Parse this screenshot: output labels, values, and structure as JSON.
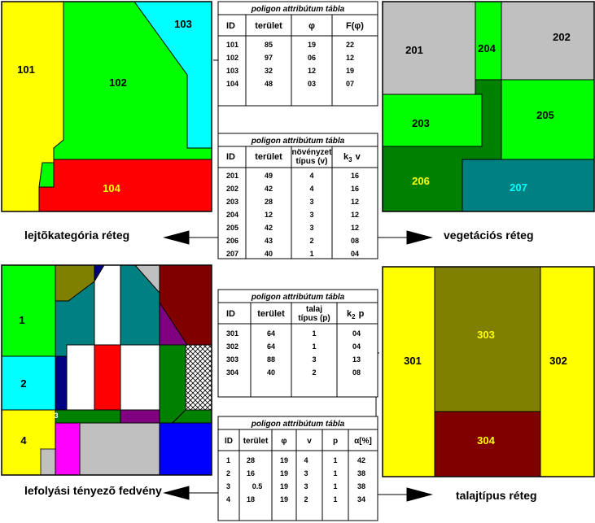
{
  "layers": {
    "slope": {
      "caption": "lejtõkategória réteg",
      "labels": {
        "p101": "101",
        "p102": "102",
        "p103": "103",
        "p104": "104"
      }
    },
    "vegetation": {
      "caption": "vegetációs réteg",
      "labels": {
        "p201": "201",
        "p202": "202",
        "p203": "203",
        "p204": "204",
        "p205": "205",
        "p206": "206",
        "p207": "207"
      }
    },
    "runoff": {
      "caption": "lefolyási tényezõ fedvény",
      "labels": {
        "z1": "1",
        "z2": "2",
        "z3": "3",
        "z4": "4"
      }
    },
    "soil": {
      "caption": "talajtípus réteg",
      "labels": {
        "p301": "301",
        "p302": "302",
        "p303": "303",
        "p304": "304"
      }
    }
  },
  "tables": {
    "t1": {
      "title": "poligon attribútum tábla",
      "headers": [
        "ID",
        "terület",
        "φ",
        "F(φ)"
      ],
      "rows": [
        [
          "101",
          "85",
          "19",
          "22"
        ],
        [
          "102",
          "97",
          "06",
          "12"
        ],
        [
          "103",
          "32",
          "12",
          "19"
        ],
        [
          "104",
          "48",
          "03",
          "07"
        ]
      ]
    },
    "t2": {
      "title": "poligon attribútum tábla",
      "headers": [
        "ID",
        "terület",
        "növényzet",
        "típus (v)",
        "k",
        "3",
        "v"
      ],
      "rows": [
        [
          "201",
          "49",
          "4",
          "16"
        ],
        [
          "202",
          "42",
          "4",
          "16"
        ],
        [
          "203",
          "28",
          "3",
          "12"
        ],
        [
          "204",
          "12",
          "3",
          "12"
        ],
        [
          "205",
          "42",
          "3",
          "12"
        ],
        [
          "206",
          "43",
          "2",
          "08"
        ],
        [
          "207",
          "40",
          "1",
          "04"
        ]
      ]
    },
    "t3": {
      "title": "poligon attribútum tábla",
      "headers": [
        "ID",
        "terület",
        "talaj",
        "típus (p)",
        "k",
        "2",
        "p"
      ],
      "rows": [
        [
          "301",
          "64",
          "1",
          "04"
        ],
        [
          "302",
          "64",
          "1",
          "04"
        ],
        [
          "303",
          "88",
          "3",
          "13"
        ],
        [
          "304",
          "40",
          "2",
          "08"
        ]
      ]
    },
    "t4": {
      "title": "poligon attribútum tábla",
      "headers": [
        "ID",
        "terület",
        "φ",
        "v",
        "p",
        "α[%]"
      ],
      "rows": [
        [
          "1",
          "28",
          "19",
          "4",
          "1",
          "42"
        ],
        [
          "2",
          "16",
          "19",
          "3",
          "1",
          "38"
        ],
        [
          "3",
          "0.5",
          "19",
          "3",
          "1",
          "38"
        ],
        [
          "4",
          "18",
          "19",
          "2",
          "1",
          "34"
        ]
      ]
    }
  },
  "colors": {
    "yellow": "#ffff00",
    "green": "#00ff00",
    "cyan": "#00ffff",
    "red": "#ff0000",
    "gray": "#c0c0c0",
    "darkgreen": "#008000",
    "teal": "#008080",
    "olive": "#808000",
    "maroon": "#800000",
    "purple": "#800080",
    "navy": "#000080",
    "blue": "#0000ff",
    "magenta": "#ff00ff"
  }
}
